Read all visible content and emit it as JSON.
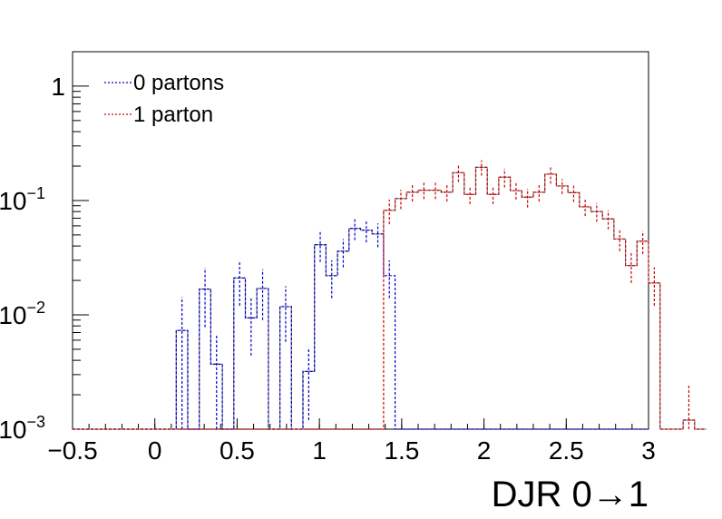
{
  "chart_data": {
    "type": "line",
    "style": "histogram-step-with-error-bars",
    "xlabel": "DJR 0→1",
    "ylabel": "",
    "xlim": [
      -0.5,
      3.0
    ],
    "ylim": [
      0.001,
      2.0
    ],
    "yscale": "log",
    "legend_position": "top-left",
    "x_ticks": [
      "−0.5",
      "0",
      "0.5",
      "1",
      "1.5",
      "2",
      "2.5",
      "3"
    ],
    "x_tick_values": [
      -0.5,
      0,
      0.5,
      1,
      1.5,
      2,
      2.5,
      3
    ],
    "y_ticks": [
      {
        "value": 1,
        "base": "1",
        "exp": ""
      },
      {
        "value": 0.1,
        "base": "10",
        "exp": "−1"
      },
      {
        "value": 0.01,
        "base": "10",
        "exp": "−2"
      },
      {
        "value": 0.001,
        "base": "10",
        "exp": "−3"
      }
    ],
    "bin_edges_start": -0.5,
    "bin_width": 0.07,
    "series": [
      {
        "name": "0 partons",
        "color": "#0000cc",
        "dashed": true,
        "values": [
          0.001,
          0.001,
          0.001,
          0.001,
          0.001,
          0.001,
          0.001,
          0.001,
          0.001,
          0.0073,
          0.001,
          0.0168,
          0.0037,
          0.001,
          0.021,
          0.0094,
          0.017,
          0.001,
          0.0118,
          0.001,
          0.0032,
          0.041,
          0.022,
          0.036,
          0.057,
          0.055,
          0.051,
          0.022,
          0.001,
          0.001,
          0.001,
          0.001,
          0.001,
          0.001,
          0.001,
          0.001,
          0.001,
          0.001,
          0.001,
          0.001,
          0.001,
          0.001,
          0.001,
          0.001,
          0.001,
          0.001,
          0.001,
          0.001,
          0.001,
          0.001
        ],
        "errors": [
          0,
          0,
          0,
          0,
          0,
          0,
          0,
          0,
          0,
          0.007,
          0,
          0.009,
          0.003,
          0,
          0.009,
          0.005,
          0.008,
          0,
          0.006,
          0,
          0.002,
          0.012,
          0.008,
          0.01,
          0.012,
          0.012,
          0.012,
          0.008,
          0,
          0,
          0,
          0,
          0,
          0,
          0,
          0,
          0,
          0,
          0,
          0,
          0,
          0,
          0,
          0,
          0,
          0,
          0,
          0,
          0,
          0
        ]
      },
      {
        "name": "1 parton",
        "color": "#cc0000",
        "dashed": true,
        "values": [
          0.001,
          0.001,
          0.001,
          0.001,
          0.001,
          0.001,
          0.001,
          0.001,
          0.001,
          0.001,
          0.001,
          0.001,
          0.001,
          0.001,
          0.001,
          0.001,
          0.001,
          0.001,
          0.001,
          0.001,
          0.001,
          0.001,
          0.001,
          0.001,
          0.001,
          0.001,
          0.001,
          0.082,
          0.104,
          0.118,
          0.123,
          0.123,
          0.118,
          0.175,
          0.113,
          0.195,
          0.113,
          0.16,
          0.122,
          0.107,
          0.118,
          0.17,
          0.134,
          0.117,
          0.088,
          0.08,
          0.069,
          0.046,
          0.027,
          0.044,
          0.019,
          0.001,
          0.001,
          0.0012,
          0.001
        ],
        "errors": [
          0,
          0,
          0,
          0,
          0,
          0,
          0,
          0,
          0,
          0,
          0,
          0,
          0,
          0,
          0,
          0,
          0,
          0,
          0,
          0,
          0,
          0,
          0,
          0,
          0,
          0,
          0,
          0.02,
          0.02,
          0.02,
          0.02,
          0.02,
          0.02,
          0.03,
          0.02,
          0.03,
          0.02,
          0.03,
          0.02,
          0.02,
          0.02,
          0.03,
          0.02,
          0.02,
          0.015,
          0.015,
          0.013,
          0.01,
          0.008,
          0.01,
          0.007,
          0,
          0,
          0.0012,
          0
        ]
      },
      {
        "name": "",
        "color": "#888888",
        "dashed": false,
        "values": [
          0.001,
          0.001,
          0.001,
          0.001,
          0.001,
          0.001,
          0.001,
          0.001,
          0.001,
          0.0073,
          0.001,
          0.0168,
          0.0037,
          0.001,
          0.021,
          0.0094,
          0.017,
          0.001,
          0.0118,
          0.001,
          0.0032,
          0.041,
          0.022,
          0.036,
          0.057,
          0.055,
          0.051,
          0.082,
          0.104,
          0.118,
          0.123,
          0.123,
          0.118,
          0.175,
          0.113,
          0.195,
          0.113,
          0.16,
          0.122,
          0.107,
          0.118,
          0.17,
          0.134,
          0.117,
          0.088,
          0.08,
          0.069,
          0.046,
          0.027,
          0.044,
          0.019,
          0.001,
          0.001,
          0.0012,
          0.001
        ],
        "errors": []
      }
    ]
  },
  "legend": {
    "items": [
      {
        "label": "0 partons",
        "color": "#0000cc"
      },
      {
        "label": "1 parton",
        "color": "#cc0000"
      }
    ]
  }
}
